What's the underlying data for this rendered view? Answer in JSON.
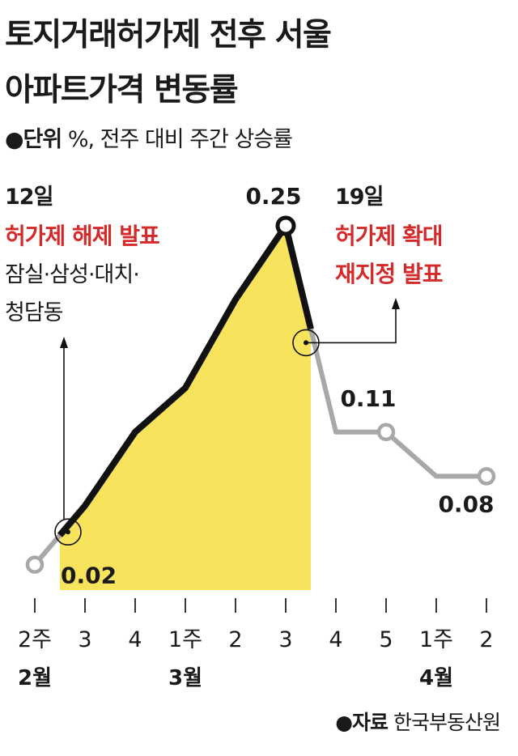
{
  "title_line1": "토지거래허가제 전후 서울",
  "title_line2": "아파트가격 변동률",
  "unit_label": "●단위",
  "unit_text": " %, 전주 대비 주간 상승률",
  "source_label": "●자료",
  "source_text": " 한국부동산원",
  "annotations": {
    "left_date": "12일",
    "left_event": "허가제 해제 발표",
    "left_detail_1": "잠실·삼성·대치·",
    "left_detail_2": "청담동",
    "right_date": "19일",
    "right_event_1": "허가제 확대",
    "right_event_2": "재지정 발표"
  },
  "colors": {
    "main_line": "#111111",
    "after_line": "#a8a8a8",
    "highlight_fill": "#f8e45c",
    "event_text": "#d42a2a"
  },
  "chart_data": {
    "type": "line",
    "categories": [
      "2주",
      "3",
      "4",
      "1주",
      "2",
      "3",
      "4",
      "5",
      "1주",
      "2"
    ],
    "month_labels": [
      {
        "label": "2월",
        "index": 0
      },
      {
        "label": "3월",
        "index": 3
      },
      {
        "label": "4월",
        "index": 8
      }
    ],
    "values": [
      0.02,
      0.06,
      0.11,
      0.14,
      0.2,
      0.25,
      0.11,
      0.11,
      0.08,
      0.08
    ],
    "labeled_points": [
      {
        "index": 0,
        "label": "0.02"
      },
      {
        "index": 5,
        "label": "0.25"
      },
      {
        "index": 7,
        "label": "0.11"
      },
      {
        "index": 9,
        "label": "0.08"
      }
    ],
    "highlight_range": [
      0.5,
      5.5
    ],
    "ylim": [
      0,
      0.25
    ]
  }
}
